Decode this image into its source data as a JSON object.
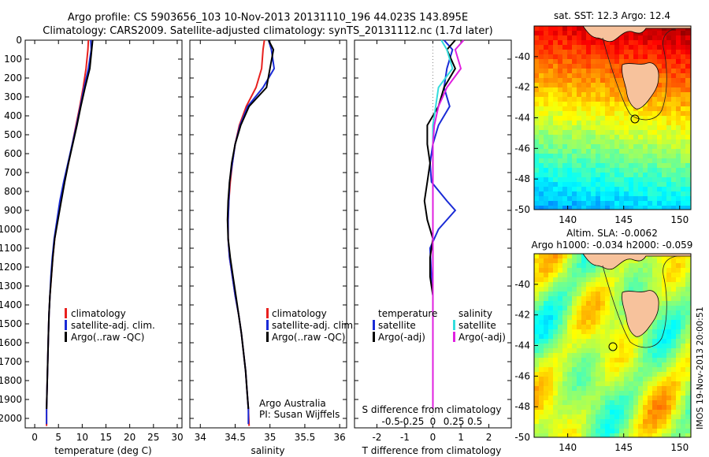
{
  "title_line1": "Argo profile: CS 5903656_103 10-Nov-2013 20131110_196 44.023S 143.895E",
  "title_line2": "Climatology: CARS2009. Satellite-adjusted climatology: synTS_20131112.nc (1.7d later)",
  "timestamp": "IMOS 19-Nov-2013 20:00:51",
  "colors": {
    "climatology": "#e8201e",
    "satellite": "#1a2bd6",
    "argo": "#000000",
    "sal_satellite": "#33dddd",
    "sal_argo": "#e020e0",
    "land": "#f7c29c"
  },
  "chart_data": [
    {
      "type": "line",
      "xlabel": "temperature (deg C)",
      "ylabel": "",
      "xlim": [
        -2,
        31
      ],
      "ylim": [
        2050,
        0
      ],
      "xticks": [
        0,
        5,
        10,
        15,
        20,
        25,
        30
      ],
      "yticks": [
        0,
        100,
        200,
        300,
        400,
        500,
        600,
        700,
        800,
        900,
        1000,
        1100,
        1200,
        1300,
        1400,
        1500,
        1600,
        1700,
        1800,
        1900,
        2000
      ],
      "legend": [
        "climatology",
        "satellite-adj. clim.",
        "Argo(..raw -QC)"
      ],
      "series": [
        {
          "name": "climatology",
          "color": "#e8201e",
          "x": [
            11.3,
            11.2,
            10.8,
            10.2,
            9.5,
            8.7,
            7.9,
            7.1,
            6.2,
            5.4,
            4.8,
            4.2,
            3.8,
            3.5,
            3.2,
            3.0,
            2.9,
            2.8,
            2.7,
            2.6,
            2.5,
            2.5
          ],
          "y": [
            0,
            50,
            150,
            250,
            350,
            450,
            550,
            650,
            750,
            850,
            950,
            1050,
            1150,
            1250,
            1350,
            1450,
            1550,
            1650,
            1750,
            1850,
            1950,
            2040
          ]
        },
        {
          "name": "satellite-adj. clim.",
          "color": "#1a2bd6",
          "x": [
            11.8,
            11.9,
            11.3,
            10.4,
            9.6,
            8.8,
            7.9,
            7.0,
            6.1,
            5.3,
            4.7,
            4.1,
            3.7,
            3.4,
            3.2,
            3.0,
            2.9,
            2.8,
            2.7,
            2.6,
            2.5,
            2.5
          ],
          "y": [
            0,
            50,
            150,
            250,
            350,
            450,
            550,
            650,
            750,
            850,
            950,
            1050,
            1150,
            1250,
            1350,
            1450,
            1550,
            1650,
            1750,
            1850,
            1950,
            2030
          ]
        },
        {
          "name": "Argo(..raw -QC)",
          "color": "#000000",
          "x": [
            12.2,
            12.0,
            11.6,
            10.6,
            9.7,
            8.9,
            8.0,
            7.1,
            6.3,
            5.6,
            4.9,
            4.2,
            3.8,
            3.5,
            3.2,
            3.0,
            2.9,
            2.8,
            2.7,
            2.6,
            2.5
          ],
          "y": [
            0,
            50,
            150,
            250,
            350,
            450,
            550,
            650,
            750,
            850,
            950,
            1050,
            1150,
            1250,
            1350,
            1450,
            1550,
            1650,
            1750,
            1850,
            1950
          ]
        }
      ]
    },
    {
      "type": "line",
      "xlabel": "salinity",
      "ylabel": "",
      "xlim": [
        33.85,
        36.1
      ],
      "ylim": [
        2050,
        0
      ],
      "xticks": [
        34,
        34.5,
        35,
        35.5,
        36
      ],
      "legend": [
        "climatology",
        "satellite-adj. clim.",
        "Argo(..raw -QC)"
      ],
      "annotations": [
        "Argo Australia",
        "PI: Susan Wijffels"
      ],
      "series": [
        {
          "name": "climatology",
          "color": "#e8201e",
          "x": [
            34.92,
            34.9,
            34.88,
            34.8,
            34.66,
            34.56,
            34.5,
            34.46,
            34.43,
            34.41,
            34.4,
            34.4,
            34.42,
            34.46,
            34.5,
            34.55,
            34.59,
            34.62,
            34.65,
            34.67,
            34.69,
            34.7
          ],
          "y": [
            0,
            50,
            150,
            250,
            350,
            450,
            550,
            650,
            750,
            850,
            950,
            1050,
            1150,
            1250,
            1350,
            1450,
            1550,
            1650,
            1750,
            1850,
            1950,
            2040
          ]
        },
        {
          "name": "satellite-adj. clim.",
          "color": "#1a2bd6",
          "x": [
            34.98,
            35.02,
            35.06,
            34.9,
            34.68,
            34.57,
            34.5,
            34.46,
            34.42,
            34.41,
            34.4,
            34.4,
            34.42,
            34.46,
            34.5,
            34.55,
            34.59,
            34.62,
            34.65,
            34.67,
            34.69,
            34.69
          ],
          "y": [
            0,
            50,
            150,
            250,
            350,
            450,
            550,
            650,
            750,
            850,
            950,
            1050,
            1150,
            1250,
            1350,
            1450,
            1550,
            1650,
            1750,
            1850,
            1950,
            2030
          ]
        },
        {
          "name": "Argo(..raw -QC)",
          "color": "#000000",
          "x": [
            34.98,
            35.05,
            35.0,
            34.95,
            34.7,
            34.58,
            34.5,
            34.45,
            34.42,
            34.4,
            34.39,
            34.4,
            34.43,
            34.47,
            34.51,
            34.55,
            34.59,
            34.62,
            34.65,
            34.67,
            34.69
          ],
          "y": [
            0,
            50,
            150,
            250,
            350,
            450,
            550,
            650,
            750,
            850,
            950,
            1050,
            1150,
            1250,
            1350,
            1450,
            1550,
            1650,
            1750,
            1850,
            1950
          ]
        }
      ]
    },
    {
      "type": "line",
      "xlabel": "T difference from climatology",
      "xlabel_top": "S difference from climatology",
      "ylabel": "",
      "xlim": [
        -2.8,
        2.8
      ],
      "ylim": [
        2050,
        0
      ],
      "xticks": [
        -2,
        -1,
        0,
        1,
        2
      ],
      "xticks_top": [
        "-0.5",
        "-0.25",
        "0",
        "0.25",
        "0.5"
      ],
      "legend_temperature": {
        "title": "temperature",
        "items": [
          "satellite",
          "Argo(-adj)"
        ]
      },
      "legend_salinity": {
        "title": "salinity",
        "items": [
          "satellite",
          "Argo(-adj)"
        ]
      },
      "series": [
        {
          "name": "temperature satellite",
          "color": "#1a2bd6",
          "x": [
            0.4,
            0.7,
            0.5,
            0.4,
            0.6,
            0.2,
            0.0,
            -0.1,
            -0.05,
            0.5,
            0.8,
            0.2,
            -0.1,
            -0.05,
            0.0,
            0.0,
            0.0,
            0.0,
            0.0,
            0.0,
            0.0
          ],
          "y": [
            0,
            50,
            150,
            250,
            350,
            450,
            550,
            650,
            750,
            850,
            900,
            1000,
            1100,
            1250,
            1350,
            1450,
            1550,
            1650,
            1750,
            1850,
            1950
          ]
        },
        {
          "name": "temperature Argo(-adj)",
          "color": "#000000",
          "x": [
            0.8,
            0.5,
            0.8,
            0.4,
            0.2,
            -0.2,
            -0.2,
            -0.1,
            -0.2,
            -0.3,
            -0.2,
            0.0,
            -0.1,
            -0.1,
            0.0,
            0.0,
            0.0,
            0.0,
            0.0,
            0.0,
            0.0
          ],
          "y": [
            0,
            50,
            150,
            250,
            350,
            450,
            550,
            650,
            750,
            850,
            950,
            1050,
            1150,
            1250,
            1350,
            1450,
            1550,
            1650,
            1750,
            1850,
            1950
          ]
        },
        {
          "name": "salinity satellite",
          "color": "#33dddd",
          "x": [
            0.3,
            0.5,
            0.7,
            0.2,
            0.1,
            0.0,
            0.0,
            0.0,
            0.0,
            0.0,
            0.0,
            0.0,
            0.0,
            0.0,
            0.0,
            0.0,
            0.0,
            0.0,
            0.0,
            0.0,
            0.0
          ],
          "y": [
            0,
            50,
            150,
            250,
            350,
            450,
            550,
            650,
            750,
            850,
            950,
            1050,
            1150,
            1250,
            1350,
            1450,
            1550,
            1650,
            1750,
            1850,
            1950
          ]
        },
        {
          "name": "salinity Argo(-adj)",
          "color": "#e020e0",
          "x": [
            1.1,
            0.8,
            1.0,
            0.5,
            0.2,
            0.05,
            0.0,
            0.0,
            0.0,
            0.0,
            0.0,
            0.0,
            0.0,
            0.0,
            0.0,
            0.0,
            0.0,
            0.0,
            0.0,
            0.0,
            0.0
          ],
          "y": [
            0,
            50,
            150,
            250,
            350,
            450,
            550,
            650,
            750,
            850,
            950,
            1050,
            1150,
            1250,
            1350,
            1450,
            1550,
            1650,
            1750,
            1850,
            1950
          ]
        }
      ]
    },
    {
      "type": "heatmap",
      "title": "sat. SST: 12.3 Argo: 12.4",
      "xlim": [
        137,
        151
      ],
      "ylim": [
        -50,
        -38
      ],
      "xticks": [
        140,
        145,
        150
      ],
      "yticks": [
        -40,
        -42,
        -44,
        -46,
        -48,
        -50
      ],
      "colormap": "jet",
      "argo_marker": {
        "lon": 143.895,
        "lat": -44.023
      }
    },
    {
      "type": "heatmap",
      "title": "Altim. SLA: -0.0062",
      "subtitle": "Argo h1000: -0.034 h2000: -0.059",
      "xlim": [
        137,
        151
      ],
      "ylim": [
        -50,
        -38
      ],
      "xticks": [
        140,
        145,
        150
      ],
      "yticks": [
        -40,
        -42,
        -44,
        -46,
        -48,
        -50
      ],
      "colormap": "jet",
      "argo_marker": {
        "lon": 143.895,
        "lat": -44.023
      }
    }
  ]
}
